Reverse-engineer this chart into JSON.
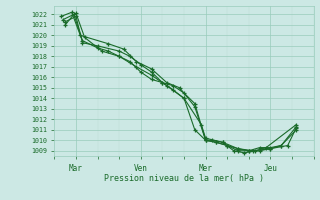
{
  "xlabel": "Pression niveau de la mer( hPa )",
  "bg_color": "#cce8e4",
  "grid_color_major": "#99ccbb",
  "grid_color_minor": "#bbddd5",
  "line_color": "#1a6b2a",
  "ylim": [
    1008.5,
    1022.8
  ],
  "yticks": [
    1009,
    1010,
    1011,
    1012,
    1013,
    1014,
    1015,
    1016,
    1017,
    1018,
    1019,
    1020,
    1021,
    1022
  ],
  "xlim": [
    0,
    12
  ],
  "xtick_major_pos": [
    1,
    4,
    7,
    10
  ],
  "xtick_major_labels": [
    "Mar",
    "Ven",
    "Mer",
    "Jeu"
  ],
  "xtick_minor_pos": [
    0,
    1,
    2,
    3,
    4,
    5,
    6,
    7,
    8,
    9,
    10,
    11,
    12
  ],
  "line1_x": [
    0.5,
    1.0,
    1.3,
    2.0,
    3.0,
    3.5,
    4.0,
    4.5,
    5.0,
    5.5,
    6.0,
    6.5,
    7.0,
    7.3,
    7.8,
    8.3,
    8.8,
    9.3,
    9.8,
    11.2
  ],
  "line1_y": [
    1021.3,
    1021.8,
    1019.3,
    1019.0,
    1018.5,
    1018.0,
    1017.2,
    1016.5,
    1015.5,
    1015.2,
    1014.5,
    1013.5,
    1010.0,
    1010.0,
    1009.8,
    1009.0,
    1008.8,
    1009.0,
    1009.3,
    1011.5
  ],
  "line2_x": [
    0.5,
    0.9,
    1.3,
    2.0,
    2.5,
    3.0,
    3.5,
    4.0,
    4.5,
    5.0,
    5.5,
    6.0,
    6.5,
    7.0,
    7.5,
    8.0,
    8.5,
    9.0,
    9.5,
    10.0,
    10.5,
    11.2
  ],
  "line2_y": [
    1021.0,
    1022.0,
    1019.5,
    1018.8,
    1018.5,
    1018.0,
    1017.5,
    1016.5,
    1015.8,
    1015.5,
    1014.8,
    1014.0,
    1011.0,
    1010.0,
    1009.8,
    1009.5,
    1009.0,
    1009.0,
    1009.3,
    1009.3,
    1009.5,
    1011.0
  ],
  "line3_x": [
    0.3,
    0.8,
    1.2,
    2.5,
    3.2,
    3.8,
    4.5,
    5.2,
    5.8,
    6.5,
    7.0,
    7.5,
    8.0,
    8.5,
    9.0,
    9.5,
    10.0,
    10.5,
    11.2
  ],
  "line3_y": [
    1021.8,
    1022.2,
    1020.0,
    1019.2,
    1018.7,
    1017.5,
    1016.8,
    1015.5,
    1015.0,
    1013.2,
    1010.0,
    1009.8,
    1009.5,
    1009.2,
    1009.0,
    1009.0,
    1009.2,
    1009.5,
    1011.3
  ],
  "line4_x": [
    0.4,
    1.0,
    1.4,
    2.2,
    3.0,
    3.8,
    4.5,
    5.2,
    6.0,
    6.8,
    7.0,
    7.8,
    8.5,
    9.2,
    10.0,
    10.8,
    11.2
  ],
  "line4_y": [
    1021.5,
    1022.1,
    1019.8,
    1018.5,
    1018.0,
    1017.0,
    1016.2,
    1015.2,
    1014.0,
    1011.5,
    1010.2,
    1009.8,
    1009.2,
    1009.0,
    1009.2,
    1009.5,
    1011.2
  ]
}
